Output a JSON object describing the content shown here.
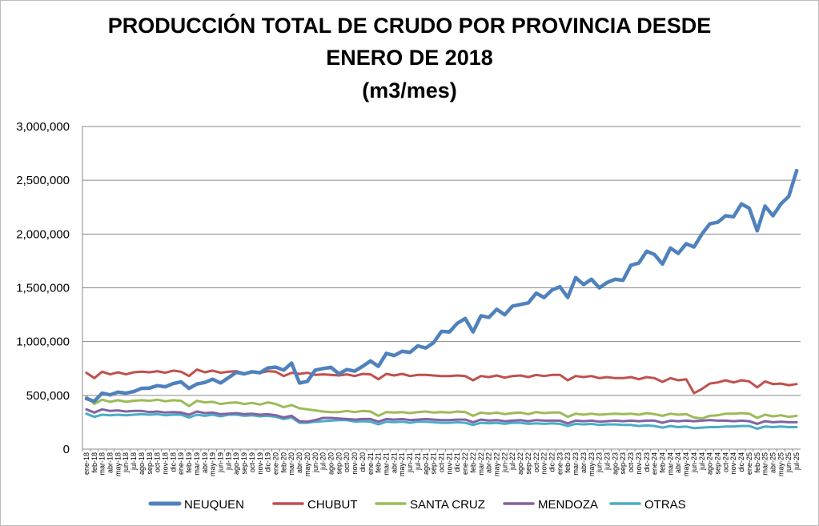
{
  "chart_data": {
    "type": "line",
    "title_lines": [
      "PRODUCCIÓN TOTAL DE CRUDO POR PROVINCIA DESDE",
      "ENERO DE 2018",
      "(m3/mes)"
    ],
    "xlabel": "",
    "ylabel": "",
    "ylim": [
      0,
      3000000
    ],
    "yticks": [
      "0",
      "500,000",
      "1,000,000",
      "1,500,000",
      "2,000,000",
      "2,500,000",
      "3,000,000"
    ],
    "grid": true,
    "legend_position": "bottom",
    "categories": [
      "ene-18",
      "feb-18",
      "mar-18",
      "abr-18",
      "may-18",
      "jun-18",
      "jul-18",
      "ago-18",
      "sep-18",
      "oct-18",
      "nov-18",
      "dic-18",
      "ene-19",
      "feb-19",
      "mar-19",
      "abr-19",
      "may-19",
      "jun-19",
      "jul-19",
      "ago-19",
      "sep-19",
      "oct-19",
      "nov-19",
      "dic-19",
      "ene-20",
      "feb-20",
      "mar-20",
      "abr-20",
      "may-20",
      "jun-20",
      "jul-20",
      "ago-20",
      "sep-20",
      "oct-20",
      "nov-20",
      "dic-20",
      "ene-21",
      "feb-21",
      "mar-21",
      "abr-21",
      "may-21",
      "jun-21",
      "jul-21",
      "ago-21",
      "sep-21",
      "oct-21",
      "nov-21",
      "dic-21",
      "ene-22",
      "feb-22",
      "mar-22",
      "abr-22",
      "may-22",
      "jun-22",
      "jul-22",
      "ago-22",
      "sep-22",
      "oct-22",
      "nov-22",
      "dic-22",
      "ene-23",
      "feb-23",
      "mar-23",
      "abr-23",
      "may-23",
      "jun-23",
      "jul-23",
      "ago-23",
      "sep-23",
      "oct-23",
      "nov-23",
      "dic-23",
      "ene-24",
      "feb-24",
      "mar-24",
      "abr-24",
      "may-24",
      "jun-24",
      "jul-24",
      "ago-24",
      "sep-24",
      "oct-24",
      "nov-24",
      "dic-24",
      "ene-25",
      "feb-25",
      "mar-25",
      "abr-25",
      "may-25",
      "jun-25",
      "jul-25"
    ],
    "series": [
      {
        "name": "NEUQUEN",
        "color": "#4F81BD",
        "width": 4.5,
        "values": [
          470000,
          445000,
          520000,
          505000,
          530000,
          520000,
          535000,
          565000,
          568000,
          590000,
          580000,
          610000,
          625000,
          565000,
          605000,
          620000,
          650000,
          615000,
          665000,
          715000,
          700000,
          720000,
          710000,
          755000,
          762000,
          735000,
          800000,
          615000,
          630000,
          735000,
          750000,
          760000,
          700000,
          740000,
          725000,
          770000,
          820000,
          770000,
          890000,
          870000,
          910000,
          900000,
          960000,
          940000,
          990000,
          1095000,
          1090000,
          1170000,
          1215000,
          1090000,
          1240000,
          1225000,
          1300000,
          1250000,
          1330000,
          1345000,
          1360000,
          1450000,
          1410000,
          1480000,
          1510000,
          1410000,
          1595000,
          1530000,
          1580000,
          1500000,
          1550000,
          1580000,
          1570000,
          1710000,
          1730000,
          1840000,
          1810000,
          1720000,
          1870000,
          1820000,
          1910000,
          1880000,
          2000000,
          2095000,
          2110000,
          2170000,
          2160000,
          2280000,
          2240000,
          2030000,
          2260000,
          2170000,
          2280000,
          2350000,
          2590000
        ]
      },
      {
        "name": "CHUBUT",
        "color": "#C0504D",
        "width": 3,
        "values": [
          710000,
          660000,
          720000,
          695000,
          715000,
          695000,
          715000,
          720000,
          715000,
          725000,
          710000,
          730000,
          720000,
          680000,
          740000,
          715000,
          730000,
          710000,
          720000,
          725000,
          705000,
          720000,
          710000,
          725000,
          720000,
          680000,
          710000,
          700000,
          710000,
          690000,
          695000,
          690000,
          685000,
          695000,
          680000,
          700000,
          695000,
          650000,
          700000,
          685000,
          700000,
          680000,
          690000,
          690000,
          685000,
          680000,
          680000,
          685000,
          680000,
          640000,
          680000,
          670000,
          685000,
          665000,
          680000,
          685000,
          670000,
          690000,
          680000,
          690000,
          690000,
          640000,
          680000,
          670000,
          680000,
          660000,
          670000,
          660000,
          660000,
          670000,
          650000,
          670000,
          660000,
          625000,
          660000,
          640000,
          650000,
          520000,
          560000,
          610000,
          620000,
          640000,
          620000,
          640000,
          630000,
          575000,
          630000,
          605000,
          610000,
          595000,
          605000
        ]
      },
      {
        "name": "SANTA CRUZ",
        "color": "#9BBB59",
        "width": 3,
        "values": [
          490000,
          420000,
          460000,
          440000,
          455000,
          440000,
          450000,
          455000,
          450000,
          460000,
          445000,
          455000,
          450000,
          400000,
          450000,
          435000,
          440000,
          420000,
          430000,
          435000,
          420000,
          430000,
          415000,
          435000,
          420000,
          390000,
          410000,
          380000,
          370000,
          360000,
          350000,
          345000,
          345000,
          355000,
          345000,
          355000,
          350000,
          310000,
          345000,
          340000,
          345000,
          335000,
          345000,
          350000,
          340000,
          345000,
          340000,
          350000,
          345000,
          310000,
          340000,
          330000,
          340000,
          325000,
          335000,
          340000,
          325000,
          345000,
          335000,
          340000,
          340000,
          300000,
          330000,
          320000,
          330000,
          320000,
          325000,
          330000,
          325000,
          330000,
          320000,
          335000,
          325000,
          310000,
          330000,
          320000,
          325000,
          295000,
          285000,
          310000,
          315000,
          330000,
          330000,
          335000,
          330000,
          290000,
          320000,
          305000,
          315000,
          300000,
          310000
        ]
      },
      {
        "name": "MENDOZA",
        "color": "#8064A2",
        "width": 3,
        "values": [
          370000,
          340000,
          370000,
          355000,
          360000,
          350000,
          355000,
          355000,
          345000,
          350000,
          340000,
          345000,
          340000,
          320000,
          350000,
          335000,
          340000,
          325000,
          330000,
          335000,
          325000,
          330000,
          320000,
          325000,
          315000,
          295000,
          310000,
          260000,
          255000,
          270000,
          290000,
          290000,
          285000,
          280000,
          275000,
          280000,
          280000,
          255000,
          280000,
          275000,
          280000,
          270000,
          275000,
          280000,
          275000,
          270000,
          270000,
          275000,
          275000,
          250000,
          275000,
          265000,
          270000,
          260000,
          265000,
          270000,
          260000,
          270000,
          265000,
          265000,
          265000,
          240000,
          265000,
          260000,
          265000,
          255000,
          260000,
          265000,
          260000,
          265000,
          260000,
          265000,
          265000,
          245000,
          265000,
          260000,
          265000,
          260000,
          265000,
          270000,
          265000,
          265000,
          260000,
          265000,
          260000,
          235000,
          260000,
          250000,
          255000,
          250000,
          250000
        ]
      },
      {
        "name": "OTRAS",
        "color": "#4BACC6",
        "width": 3,
        "values": [
          330000,
          300000,
          320000,
          315000,
          320000,
          315000,
          320000,
          325000,
          320000,
          325000,
          315000,
          320000,
          320000,
          295000,
          320000,
          310000,
          320000,
          305000,
          320000,
          320000,
          310000,
          315000,
          305000,
          310000,
          300000,
          280000,
          295000,
          245000,
          245000,
          255000,
          260000,
          265000,
          270000,
          270000,
          255000,
          260000,
          255000,
          230000,
          255000,
          250000,
          255000,
          245000,
          255000,
          255000,
          250000,
          245000,
          245000,
          250000,
          245000,
          225000,
          245000,
          240000,
          245000,
          235000,
          245000,
          245000,
          235000,
          240000,
          235000,
          240000,
          235000,
          215000,
          235000,
          230000,
          235000,
          225000,
          230000,
          230000,
          225000,
          225000,
          215000,
          220000,
          215000,
          200000,
          215000,
          205000,
          210000,
          195000,
          200000,
          205000,
          205000,
          210000,
          210000,
          215000,
          215000,
          190000,
          210000,
          205000,
          210000,
          205000,
          205000
        ]
      }
    ]
  }
}
